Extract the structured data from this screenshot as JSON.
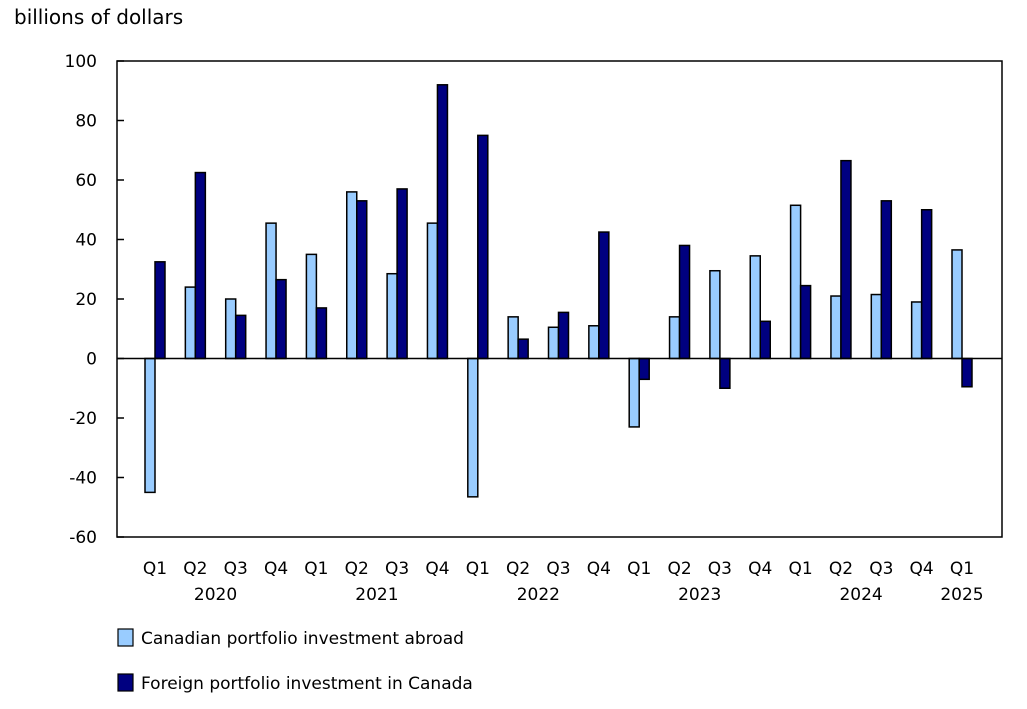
{
  "chart_data": {
    "type": "bar",
    "ylabel": "billions of dollars",
    "ylim": [
      -60,
      100
    ],
    "yticks": [
      100,
      80,
      60,
      40,
      20,
      0,
      -20,
      -40,
      -60
    ],
    "grid": false,
    "legend_placement": "bottom-left",
    "categories": [
      "Q1",
      "Q2",
      "Q3",
      "Q4",
      "Q1",
      "Q2",
      "Q3",
      "Q4",
      "Q1",
      "Q2",
      "Q3",
      "Q4",
      "Q1",
      "Q2",
      "Q3",
      "Q4",
      "Q1",
      "Q2",
      "Q3",
      "Q4",
      "Q1"
    ],
    "years": [
      {
        "label": "2020",
        "first": 0,
        "last": 3
      },
      {
        "label": "2021",
        "first": 4,
        "last": 7
      },
      {
        "label": "2022",
        "first": 8,
        "last": 11
      },
      {
        "label": "2023",
        "first": 12,
        "last": 15
      },
      {
        "label": "2024",
        "first": 16,
        "last": 19
      },
      {
        "label": "2025",
        "first": 20,
        "last": 20
      }
    ],
    "series": [
      {
        "name": "Canadian portfolio investment abroad",
        "color": "#99CCFF",
        "values": [
          -45,
          24,
          20,
          45.5,
          35,
          56,
          28.5,
          45.5,
          -46.5,
          14,
          10.5,
          11,
          -23,
          14,
          29.5,
          34.5,
          51.5,
          21,
          21.5,
          19,
          36.5
        ]
      },
      {
        "name": "Foreign portfolio investment in Canada",
        "color": "#000080",
        "values": [
          32.5,
          62.5,
          14.5,
          26.5,
          17,
          53,
          57,
          92,
          75,
          6.5,
          15.5,
          42.5,
          -7,
          38,
          -10,
          12.5,
          24.5,
          66.5,
          53,
          50,
          -9.5
        ]
      }
    ]
  }
}
